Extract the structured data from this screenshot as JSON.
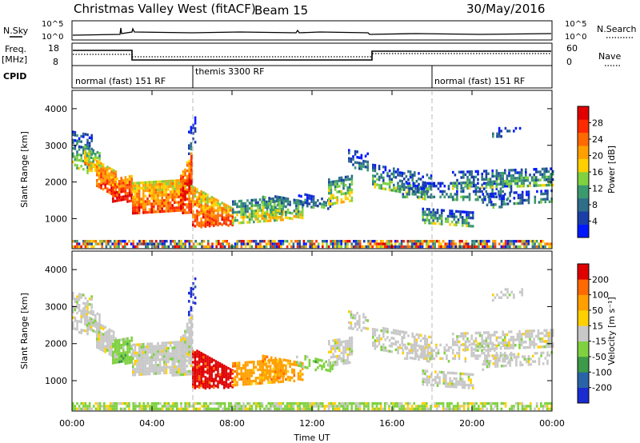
{
  "header": {
    "station": "Christmas Valley West (fitACF)",
    "beam": "Beam 15",
    "date": "30/May/2016"
  },
  "top_panels": {
    "nsky_label": "N.Sky",
    "nsky_ticks": [
      "10^5",
      "10^0"
    ],
    "nsearch_label": "N.Search",
    "nsearch_ticks": [
      "10^5",
      "10^0"
    ],
    "freq_label": "Freq.",
    "freq_unit": "[MHz]",
    "freq_ticks": [
      "18",
      "8"
    ],
    "nave_label": "Nave",
    "nave_ticks": [
      "60",
      "0"
    ],
    "cpid_label": "CPID",
    "cpid_segments": [
      "normal (fast) 151 RF",
      "themis 3300 RF",
      "normal (fast) 151 RF"
    ]
  },
  "chart_data": {
    "type": "heatmap",
    "xlabel": "Time UT",
    "x_ticks": [
      "00:00",
      "04:00",
      "08:00",
      "12:00",
      "16:00",
      "20:00",
      "00:00"
    ],
    "x_range_hours": [
      0,
      24
    ],
    "ylabel": "Slant Range [km]",
    "y_ticks": [
      "4000",
      "3000",
      "2000",
      "1000"
    ],
    "y_range_km": [
      180,
      4500
    ],
    "power": {
      "colorbar_label": "Power [dB]",
      "colorbar_ticks": [
        "28",
        "24",
        "20",
        "16",
        "12",
        "8",
        "4"
      ],
      "colors": [
        "#0018ff",
        "#1a3ea8",
        "#2f6e88",
        "#3a9a6e",
        "#7fd140",
        "#ffd000",
        "#ffa000",
        "#ff6a00",
        "#ff2a00",
        "#e00000"
      ]
    },
    "velocity": {
      "colorbar_label": "Velocity [m s⁻¹]",
      "colorbar_ticks": [
        "200",
        "100",
        "50",
        "15",
        "-15",
        "-50",
        "-100",
        "-200"
      ],
      "colors": [
        "#1a2cd0",
        "#2a64a8",
        "#3c9a48",
        "#7fd140",
        "#c8c8c8",
        "#ffd000",
        "#ffa000",
        "#ff6a00",
        "#e00000"
      ]
    }
  }
}
